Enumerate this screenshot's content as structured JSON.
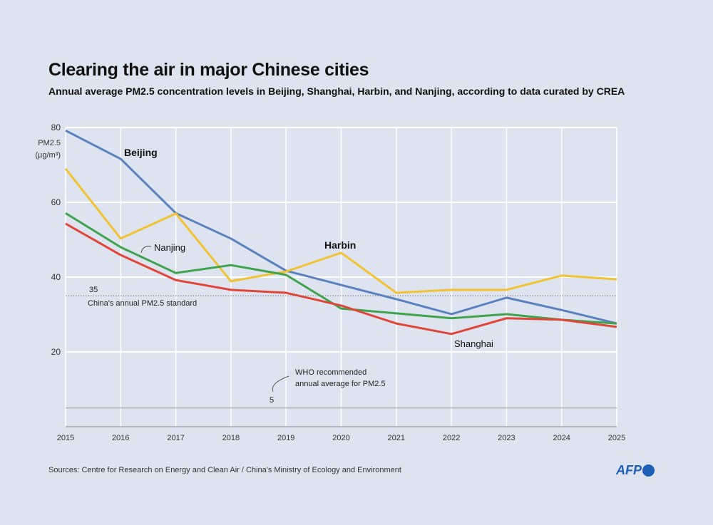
{
  "title": "Clearing the air in major Chinese cities",
  "subtitle": "Annual average PM2.5 concentration levels in Beijing, Shanghai, Harbin, and Nanjing, according to data curated by CREA",
  "source": "Sources: Centre for Research on Energy and Clean Air / China's Ministry of Ecology and Environment",
  "logo": "AFP",
  "chart_data": {
    "type": "line",
    "title": "Clearing the air in major Chinese cities",
    "ylabel_line1": "PM2.5",
    "ylabel_line2": "(µg/m³)",
    "x": [
      2015,
      2016,
      2017,
      2018,
      2019,
      2020,
      2021,
      2022,
      2023,
      2024,
      2025
    ],
    "ylim": [
      0,
      80
    ],
    "yticks": [
      20,
      40,
      60,
      80
    ],
    "grid": true,
    "series": [
      {
        "name": "Beijing",
        "color": "#5b80c0",
        "values": [
          79.2,
          71.6,
          57.1,
          50.3,
          41.7,
          37.9,
          34.1,
          30.1,
          34.5,
          31.2,
          27.6
        ]
      },
      {
        "name": "Harbin",
        "color": "#f1c232",
        "values": [
          69.0,
          50.3,
          57.0,
          38.9,
          41.5,
          46.5,
          35.8,
          36.6,
          36.6,
          40.4,
          39.4
        ]
      },
      {
        "name": "Nanjing",
        "color": "#3fa34d",
        "values": [
          57.1,
          48.0,
          41.1,
          43.2,
          40.6,
          31.6,
          30.3,
          29.0,
          30.1,
          28.6,
          27.6
        ]
      },
      {
        "name": "Shanghai",
        "color": "#e0453a",
        "values": [
          54.3,
          45.9,
          39.2,
          36.6,
          35.8,
          32.4,
          27.6,
          24.8,
          29.0,
          28.6,
          26.7
        ]
      }
    ],
    "reference_lines": [
      {
        "value": 35,
        "value_label": "35",
        "label": "China's annual PM2.5 standard"
      },
      {
        "value": 5,
        "value_label": "5",
        "label_line1": "WHO recommended",
        "label_line2": "annual average for PM2.5"
      }
    ]
  }
}
